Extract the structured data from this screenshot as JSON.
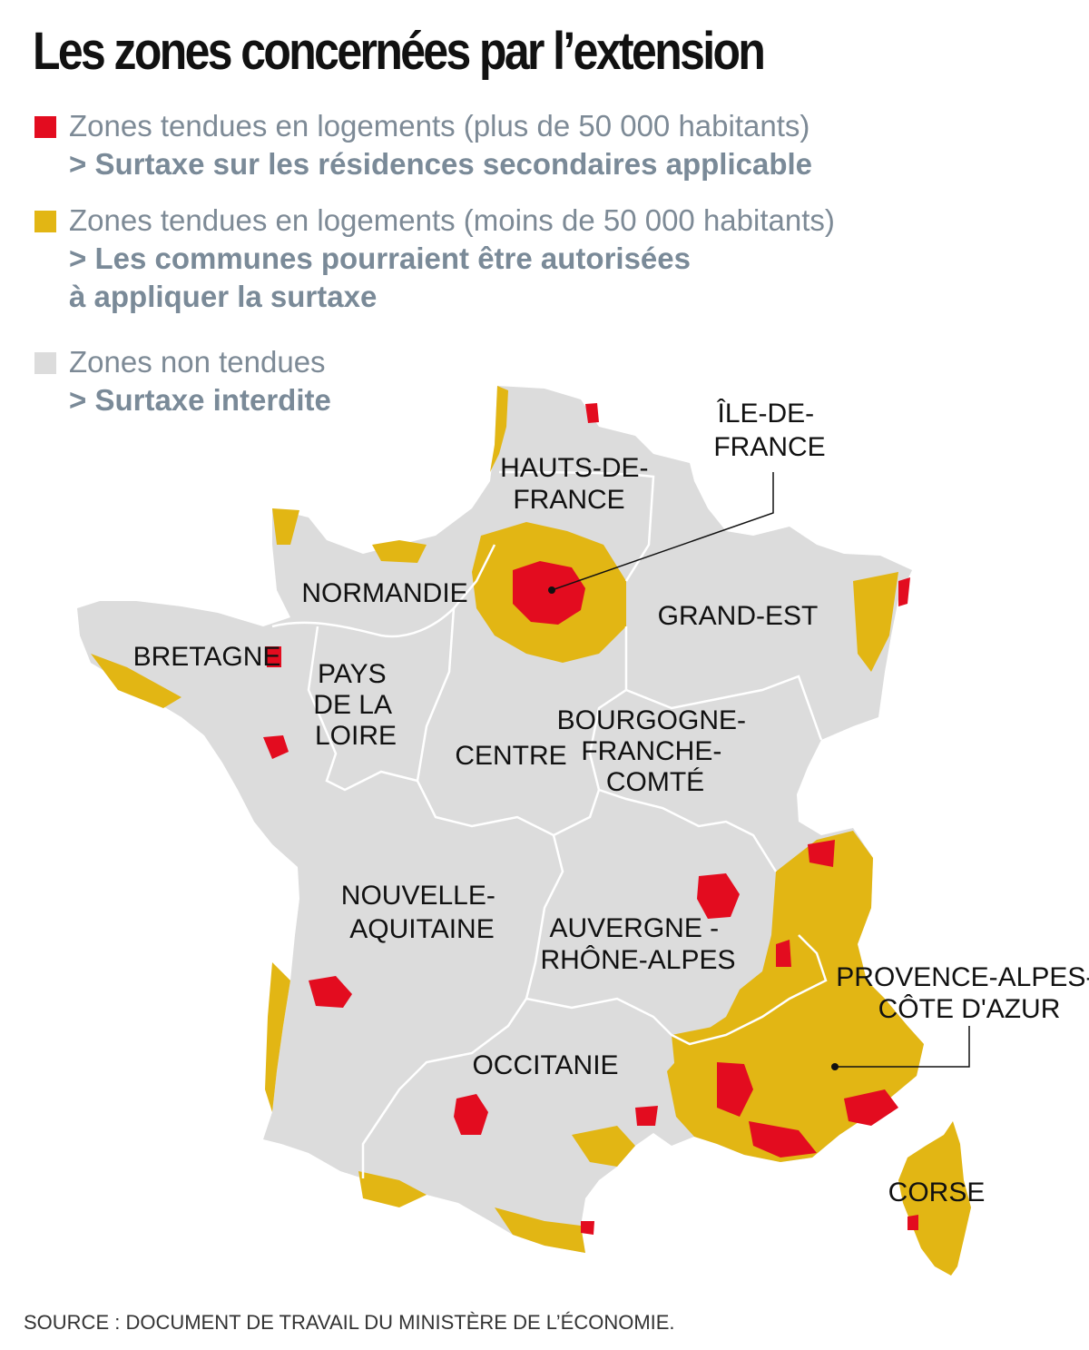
{
  "title": "Les zones concernées par l’extension",
  "legend": [
    {
      "color": "#e30c1f",
      "line1": "Zones tendues en logements (plus de 50 000 habitants)",
      "line2": "> Surtaxe sur les résidences secondaires applicable"
    },
    {
      "color": "#e2b614",
      "line1": "Zones tendues en logements (moins de 50 000 habitants)",
      "line2": "> Les communes pourraient être autorisées",
      "line3": "à appliquer la surtaxe"
    },
    {
      "color": "#dcdcdc",
      "line1": "Zones non tendues",
      "line2": "> Surtaxe interdite"
    }
  ],
  "regions": {
    "hauts_de_france": [
      "HAUTS-DE-",
      "FRANCE"
    ],
    "ile_de_france": [
      "ÎLE-DE-",
      "FRANCE"
    ],
    "normandie": [
      "NORMANDIE"
    ],
    "grand_est": [
      "GRAND-EST"
    ],
    "bretagne": [
      "BRETAGNE"
    ],
    "pays_de_la_loire": [
      "PAYS",
      "DE LA",
      "LOIRE"
    ],
    "centre": [
      "CENTRE"
    ],
    "bourgogne": [
      "BOURGOGNE-",
      "FRANCHE-",
      "COMTÉ"
    ],
    "nouvelle_aquitaine": [
      "NOUVELLE-",
      "AQUITAINE"
    ],
    "auvergne": [
      "AUVERGNE -",
      "RHÔNE-ALPES"
    ],
    "occitanie": [
      "OCCITANIE"
    ],
    "paca": [
      "PROVENCE-ALPES-",
      "CÔTE D'AZUR"
    ],
    "corse": [
      "CORSE"
    ]
  },
  "colors": {
    "red": "#e30c1f",
    "yellow": "#e2b614",
    "grey": "#dcdcdc",
    "border": "#ffffff"
  },
  "source": "SOURCE : DOCUMENT DE TRAVAIL DU MINISTÈRE DE L’ÉCONOMIE."
}
